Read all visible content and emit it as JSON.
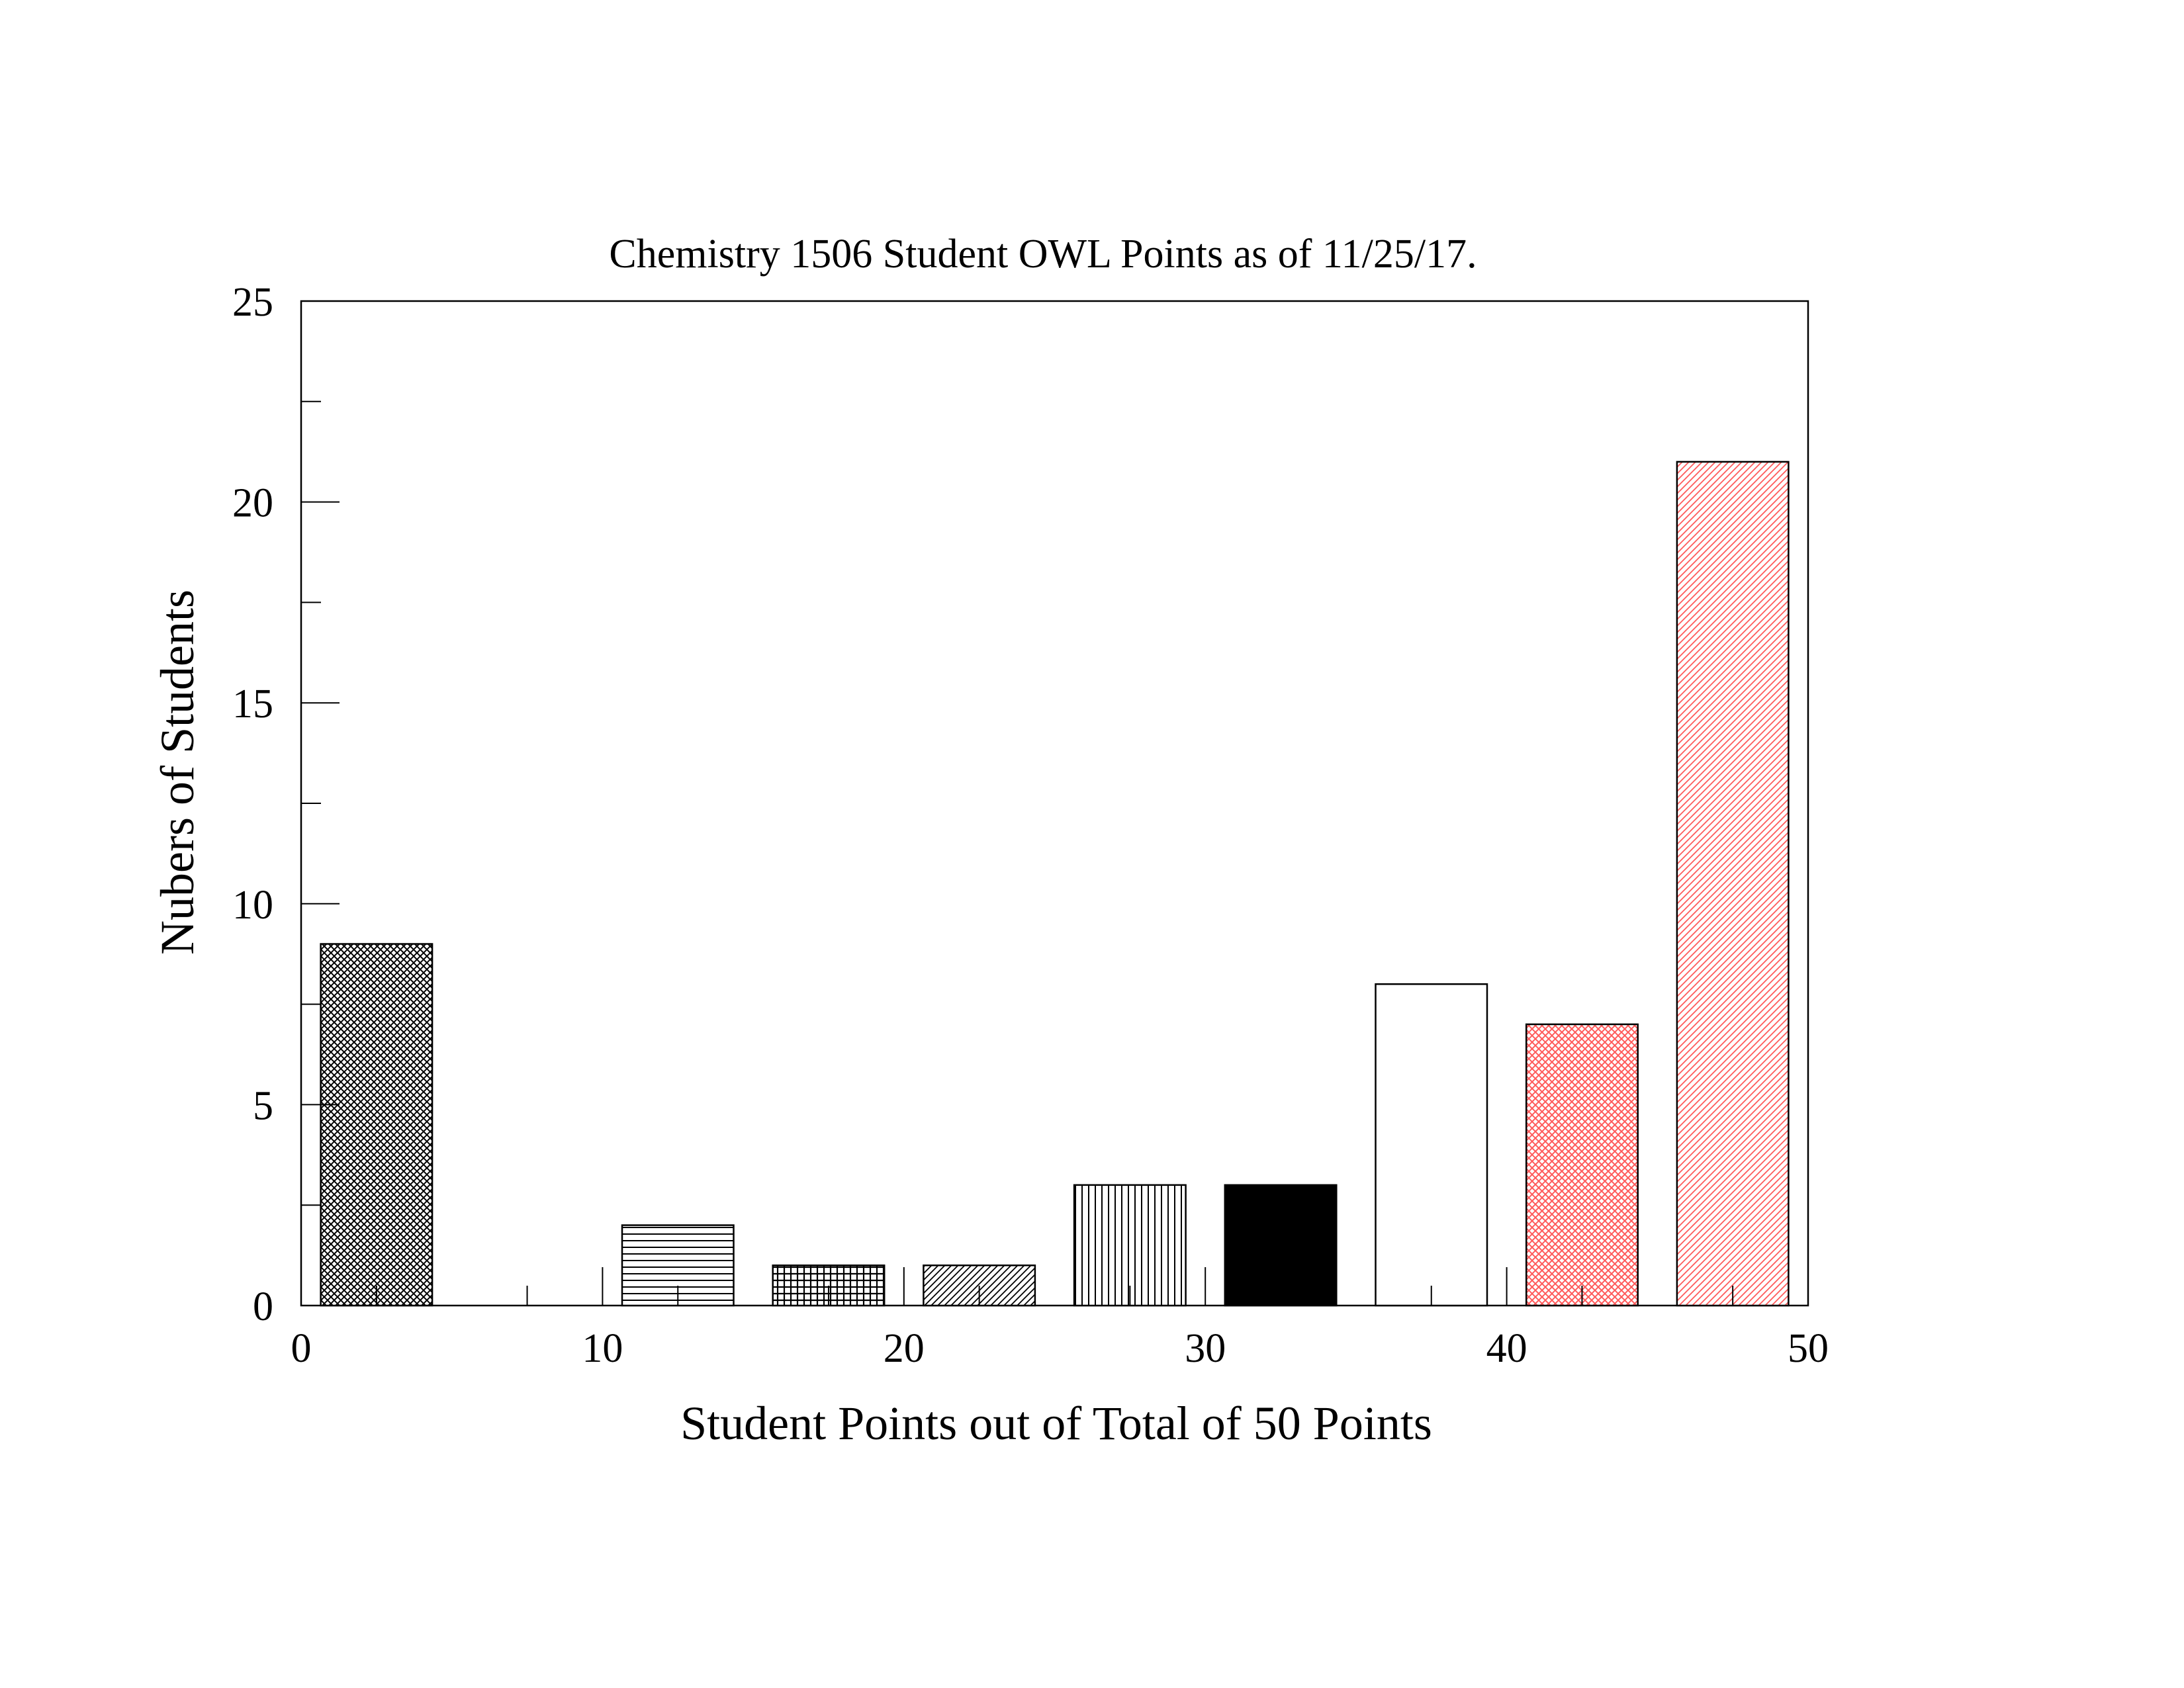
{
  "chart_data": {
    "type": "bar",
    "title": "Chemistry 1506 Student OWL Points as of 11/25/17.",
    "xlabel": "Student Points out of Total of 50 Points",
    "ylabel": "Nubers of Students",
    "xlim": [
      0,
      50
    ],
    "ylim": [
      0,
      25
    ],
    "xticks": [
      "0",
      "10",
      "20",
      "30",
      "40",
      "50"
    ],
    "yticks": [
      "0",
      "5",
      "10",
      "15",
      "20",
      "25"
    ],
    "bin_width": 5,
    "grid": false,
    "legend": "none",
    "bars": [
      {
        "range": "0-5",
        "value": 9,
        "pattern": "crosshatch-fine",
        "color": "#000000"
      },
      {
        "range": "5-10",
        "value": 0,
        "pattern": "none",
        "color": "#000000"
      },
      {
        "range": "10-15",
        "value": 2,
        "pattern": "horizontal",
        "color": "#000000"
      },
      {
        "range": "15-20",
        "value": 1,
        "pattern": "grid",
        "color": "#000000"
      },
      {
        "range": "20-25",
        "value": 1,
        "pattern": "diagonal",
        "color": "#000000"
      },
      {
        "range": "25-30",
        "value": 3,
        "pattern": "vertical",
        "color": "#000000"
      },
      {
        "range": "30-35",
        "value": 3,
        "pattern": "solid",
        "color": "#000000"
      },
      {
        "range": "35-40",
        "value": 8,
        "pattern": "empty",
        "color": "#000000"
      },
      {
        "range": "40-45",
        "value": 7,
        "pattern": "crosshatch-fine",
        "color": "#ff5a5a"
      },
      {
        "range": "45-50",
        "value": 21,
        "pattern": "diagonal",
        "color": "#ff5a5a"
      }
    ]
  }
}
